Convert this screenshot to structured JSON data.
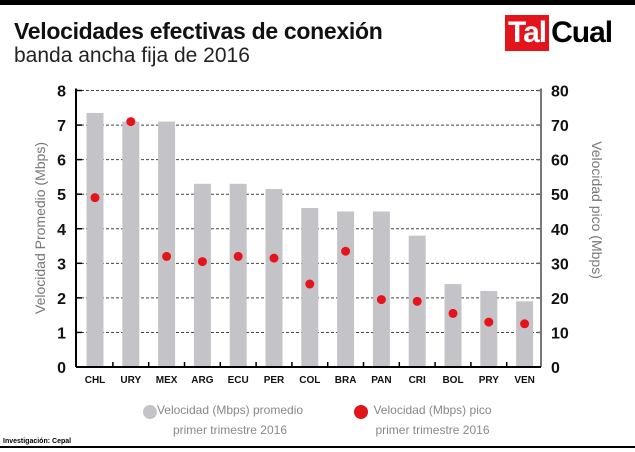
{
  "header": {
    "title": "Velocidades efectivas de conexión",
    "subtitle": "banda ancha fija de 2016",
    "logo_text": "TalCual",
    "logo_part1": "Tal",
    "logo_part2": "Cual"
  },
  "footer": {
    "credit": "Investigación: Cepal"
  },
  "colors": {
    "bar": "#c4c4c8",
    "point": "#e3141b",
    "brand_red": "#e3141b"
  },
  "chart_data": {
    "type": "bar",
    "categories": [
      "CHL",
      "URY",
      "MEX",
      "ARG",
      "ECU",
      "PER",
      "COL",
      "BRA",
      "PAN",
      "CRI",
      "BOL",
      "PRY",
      "VEN"
    ],
    "series": [
      {
        "name": "Velocidad (Mbps) promedio primer trimestre 2016",
        "type": "bar",
        "axis": "left",
        "values": [
          7.35,
          7.1,
          7.1,
          5.3,
          5.3,
          5.15,
          4.6,
          4.5,
          4.5,
          3.8,
          2.4,
          2.2,
          1.9
        ]
      },
      {
        "name": "Velocidad (Mbps) pico primer trimestre 2016",
        "type": "scatter",
        "axis": "right",
        "values": [
          49,
          71,
          32,
          30.5,
          32,
          31.5,
          24,
          33.5,
          19.5,
          19,
          15.5,
          13,
          12.5
        ]
      }
    ],
    "ylabel": "Velocidad Promedio (Mbps)",
    "y2label": "Velocidad pico (Mbps)",
    "ylim": [
      0,
      8
    ],
    "y2lim": [
      0,
      80
    ],
    "yticks": [
      "0",
      "1",
      "2",
      "3",
      "4",
      "5",
      "6",
      "7",
      "8"
    ],
    "y2ticks": [
      "0",
      "10",
      "20",
      "30",
      "40",
      "50",
      "60",
      "70",
      "80"
    ],
    "grid": true,
    "legend": {
      "position": "bottom",
      "items": [
        {
          "line1": "Velocidad (Mbps) promedio",
          "line2": "primer trimestre 2016"
        },
        {
          "line1": "Velocidad (Mbps) pico",
          "line2": "primer trimestre 2016"
        }
      ]
    }
  }
}
